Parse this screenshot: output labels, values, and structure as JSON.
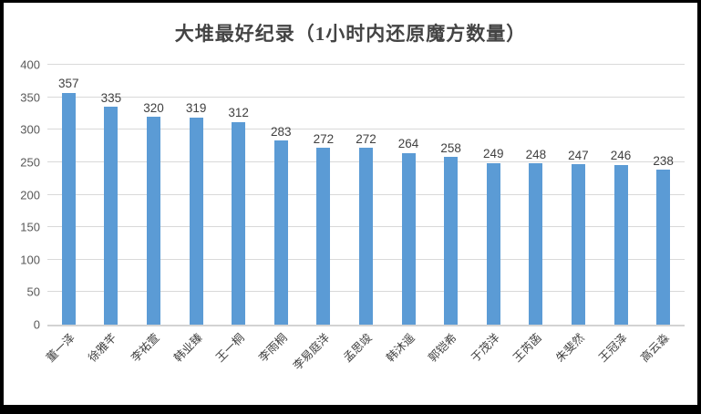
{
  "chart_data": {
    "type": "bar",
    "title": "大堆最好纪录（1小时内还原魔方数量）",
    "categories": [
      "董一泽",
      "徐雅芊",
      "李祐萱",
      "韩业臻",
      "王一桐",
      "李雨桐",
      "李易庭洋",
      "孟思竣",
      "韩沐遥",
      "郭铠希",
      "于茂洋",
      "王芮菡",
      "朱斐然",
      "王冠泽",
      "高云淼"
    ],
    "values": [
      357,
      335,
      320,
      319,
      312,
      283,
      272,
      272,
      264,
      258,
      249,
      248,
      247,
      246,
      238
    ],
    "xlabel": "",
    "ylabel": "",
    "ylim": [
      0,
      400
    ],
    "yticks": [
      0,
      50,
      100,
      150,
      200,
      250,
      300,
      350,
      400
    ],
    "grid": true,
    "legend_position": "none",
    "value_labels_shown": true,
    "x_label_rotation_deg": 45,
    "colors": {
      "bar": "#5b9bd5",
      "gridline": "#d9d9d9",
      "axis_line": "#d3d3d3",
      "title_text": "#444444",
      "tick_text": "#595959",
      "value_text": "#404040"
    }
  }
}
